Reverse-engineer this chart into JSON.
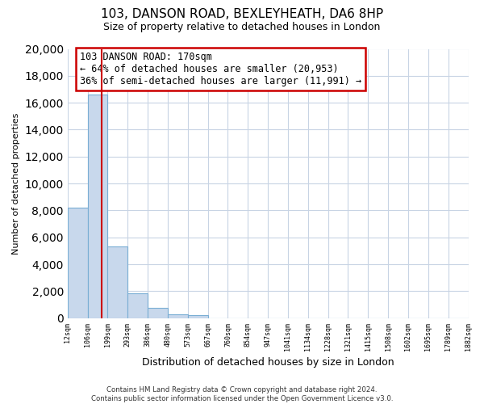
{
  "title": "103, DANSON ROAD, BEXLEYHEATH, DA6 8HP",
  "subtitle": "Size of property relative to detached houses in London",
  "xlabel": "Distribution of detached houses by size in London",
  "ylabel": "Number of detached properties",
  "bar_values": [
    8200,
    16600,
    5300,
    1850,
    750,
    300,
    200,
    0,
    0,
    0,
    0,
    0,
    0,
    0,
    0,
    0,
    0,
    0,
    0,
    0
  ],
  "bar_color": "#c8d8ec",
  "bar_edge_color": "#7aaed4",
  "tick_labels": [
    "12sqm",
    "106sqm",
    "199sqm",
    "293sqm",
    "386sqm",
    "480sqm",
    "573sqm",
    "667sqm",
    "760sqm",
    "854sqm",
    "947sqm",
    "1041sqm",
    "1134sqm",
    "1228sqm",
    "1321sqm",
    "1415sqm",
    "1508sqm",
    "1602sqm",
    "1695sqm",
    "1789sqm",
    "1882sqm"
  ],
  "ylim": [
    0,
    20000
  ],
  "yticks": [
    0,
    2000,
    4000,
    6000,
    8000,
    10000,
    12000,
    14000,
    16000,
    18000,
    20000
  ],
  "property_line_x": 1.68,
  "annotation_title": "103 DANSON ROAD: 170sqm",
  "annotation_line1": "← 64% of detached houses are smaller (20,953)",
  "annotation_line2": "36% of semi-detached houses are larger (11,991) →",
  "footer1": "Contains HM Land Registry data © Crown copyright and database right 2024.",
  "footer2": "Contains public sector information licensed under the Open Government Licence v3.0.",
  "background_color": "#ffffff",
  "plot_bg_color": "#ffffff",
  "grid_color": "#c8d4e4",
  "annotation_box_color": "#ffffff",
  "annotation_box_edge": "#cc0000",
  "property_line_color": "#cc0000"
}
